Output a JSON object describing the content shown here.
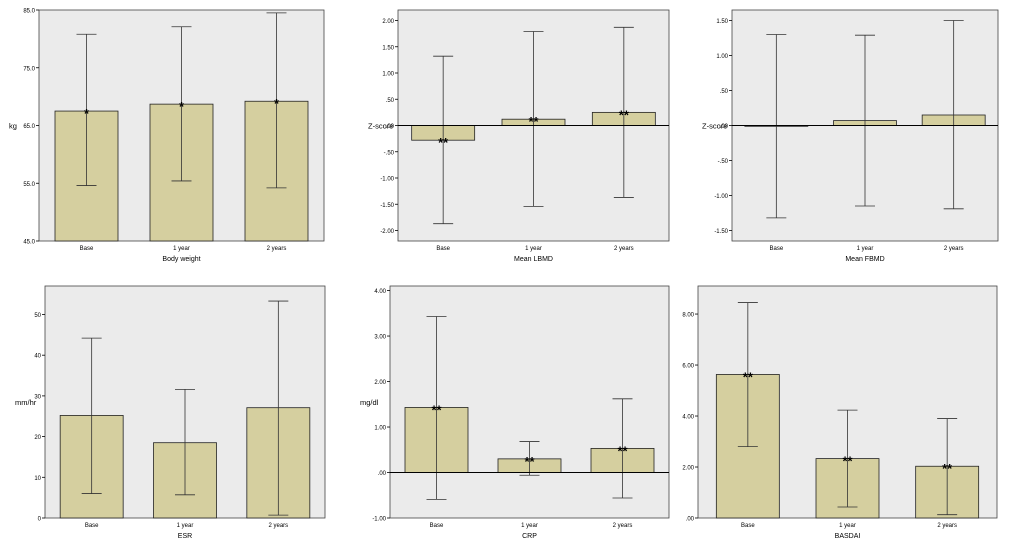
{
  "colors": {
    "plot_background": "#ebebeb",
    "bar_fill": "#d5cf9f",
    "bar_stroke": "#222222",
    "axis": "#000000",
    "text": "#000000"
  },
  "chart_data": [
    {
      "type": "bar",
      "xlabel": "Body weight",
      "ylabel": "kg",
      "categories": [
        "Base",
        "1 year",
        "2 years"
      ],
      "values": [
        67.5,
        68.7,
        69.2
      ],
      "error_low": [
        54.6,
        55.4,
        54.2
      ],
      "error_high": [
        80.8,
        82.1,
        84.5
      ],
      "markers": [
        "*",
        "*",
        "*"
      ],
      "ylim": [
        45,
        85
      ],
      "yticks": [
        45,
        55,
        65,
        75,
        85
      ],
      "ytick_labels": [
        "45.0",
        "55.0",
        "65.0",
        "75.0",
        "85.0"
      ],
      "zero_line": false
    },
    {
      "type": "bar",
      "xlabel": "Mean LBMD",
      "ylabel": "Z-score",
      "categories": [
        "Base",
        "1 year",
        "2 years"
      ],
      "values": [
        -0.28,
        0.12,
        0.25
      ],
      "error_low": [
        -1.87,
        -1.54,
        -1.37
      ],
      "error_high": [
        1.32,
        1.79,
        1.87
      ],
      "markers": [
        "**",
        "**",
        "**"
      ],
      "ylim": [
        -2.2,
        2.2
      ],
      "yticks": [
        -2,
        -1.5,
        -1,
        -0.5,
        0,
        0.5,
        1,
        1.5,
        2
      ],
      "ytick_labels": [
        "-2.00",
        "-1.50",
        "-1.00",
        "-.50",
        ".00",
        ".50",
        "1.00",
        "1.50",
        "2.00"
      ],
      "zero_line": true
    },
    {
      "type": "bar",
      "xlabel": "Mean FBMD",
      "ylabel": "Z-score",
      "categories": [
        "Base",
        "1 year",
        "2 years"
      ],
      "values": [
        0.0,
        0.07,
        0.15
      ],
      "error_low": [
        -1.32,
        -1.15,
        -1.19
      ],
      "error_high": [
        1.3,
        1.29,
        1.5
      ],
      "markers": [
        "",
        "",
        ""
      ],
      "ylim": [
        -1.65,
        1.65
      ],
      "yticks": [
        -1.5,
        -1,
        -0.5,
        0,
        0.5,
        1,
        1.5
      ],
      "ytick_labels": [
        "-1.50",
        "-1.00",
        "-.50",
        ".00",
        ".50",
        "1.00",
        "1.50"
      ],
      "zero_line": true
    },
    {
      "type": "bar",
      "xlabel": "ESR",
      "ylabel": "mm/hr",
      "categories": [
        "Base",
        "1 year",
        "2 years"
      ],
      "values": [
        25.2,
        18.5,
        27.1
      ],
      "error_low": [
        6.0,
        5.7,
        0.7
      ],
      "error_high": [
        44.2,
        31.6,
        53.3
      ],
      "markers": [
        "",
        "",
        ""
      ],
      "ylim": [
        0,
        57
      ],
      "yticks": [
        0,
        10,
        20,
        30,
        40,
        50
      ],
      "ytick_labels": [
        "0",
        "10",
        "20",
        "30",
        "40",
        "50"
      ],
      "zero_line": false
    },
    {
      "type": "bar",
      "xlabel": "CRP",
      "ylabel": "mg/dl",
      "categories": [
        "Base",
        "1 year",
        "2 years"
      ],
      "values": [
        1.43,
        0.3,
        0.53
      ],
      "error_low": [
        -0.59,
        -0.06,
        -0.56
      ],
      "error_high": [
        3.43,
        0.68,
        1.62
      ],
      "markers": [
        "**",
        "**",
        "**"
      ],
      "ylim": [
        -1,
        4.1
      ],
      "yticks": [
        -1,
        0,
        1,
        2,
        3,
        4
      ],
      "ytick_labels": [
        "-1.00",
        ".00",
        "1.00",
        "2.00",
        "3.00",
        "4.00"
      ],
      "zero_line": true
    },
    {
      "type": "bar",
      "xlabel": "BASDAI",
      "ylabel": "",
      "categories": [
        "Base",
        "1 year",
        "2 years"
      ],
      "values": [
        5.63,
        2.33,
        2.03
      ],
      "error_low": [
        2.8,
        0.43,
        0.13
      ],
      "error_high": [
        8.45,
        4.23,
        3.9
      ],
      "markers": [
        "**",
        "**",
        "**"
      ],
      "ylim": [
        0,
        9.1
      ],
      "yticks": [
        0,
        2,
        4,
        6,
        8
      ],
      "ytick_labels": [
        ".00",
        "2.00",
        "4.00",
        "6.00",
        "8.00"
      ],
      "zero_line": false
    }
  ]
}
